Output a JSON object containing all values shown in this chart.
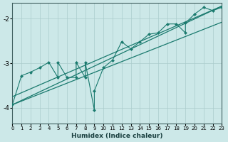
{
  "xlabel": "Humidex (Indice chaleur)",
  "bg_color": "#cce8e8",
  "line_color": "#1a7a6e",
  "grid_color": "#aacccc",
  "xlim": [
    0,
    23
  ],
  "ylim": [
    -4.35,
    -1.65
  ],
  "yticks": [
    -4,
    -3,
    -2
  ],
  "xticks": [
    0,
    1,
    2,
    3,
    4,
    5,
    6,
    7,
    8,
    9,
    10,
    11,
    12,
    13,
    14,
    15,
    16,
    17,
    18,
    19,
    20,
    21,
    22,
    23
  ],
  "line1_x": [
    0,
    23
  ],
  "line1_y": [
    -3.93,
    -1.72
  ],
  "line2_x": [
    0,
    23
  ],
  "line2_y": [
    -3.75,
    -1.72
  ],
  "line3_x": [
    0,
    23
  ],
  "line3_y": [
    -3.93,
    -2.08
  ],
  "jagged_x": [
    0,
    1,
    2,
    3,
    4,
    5,
    5,
    6,
    7,
    7,
    8,
    8,
    9,
    9,
    10,
    11,
    12,
    13,
    14,
    15,
    16,
    17,
    18,
    19,
    19,
    20,
    21,
    22,
    23
  ],
  "jagged_y": [
    -3.93,
    -3.28,
    -3.2,
    -3.1,
    -2.98,
    -3.32,
    -2.98,
    -3.32,
    -3.32,
    -2.98,
    -3.32,
    -2.98,
    -4.05,
    -3.62,
    -3.1,
    -2.93,
    -2.52,
    -2.68,
    -2.52,
    -2.35,
    -2.32,
    -2.12,
    -2.12,
    -2.32,
    -2.1,
    -1.9,
    -1.75,
    -1.82,
    -1.75
  ]
}
